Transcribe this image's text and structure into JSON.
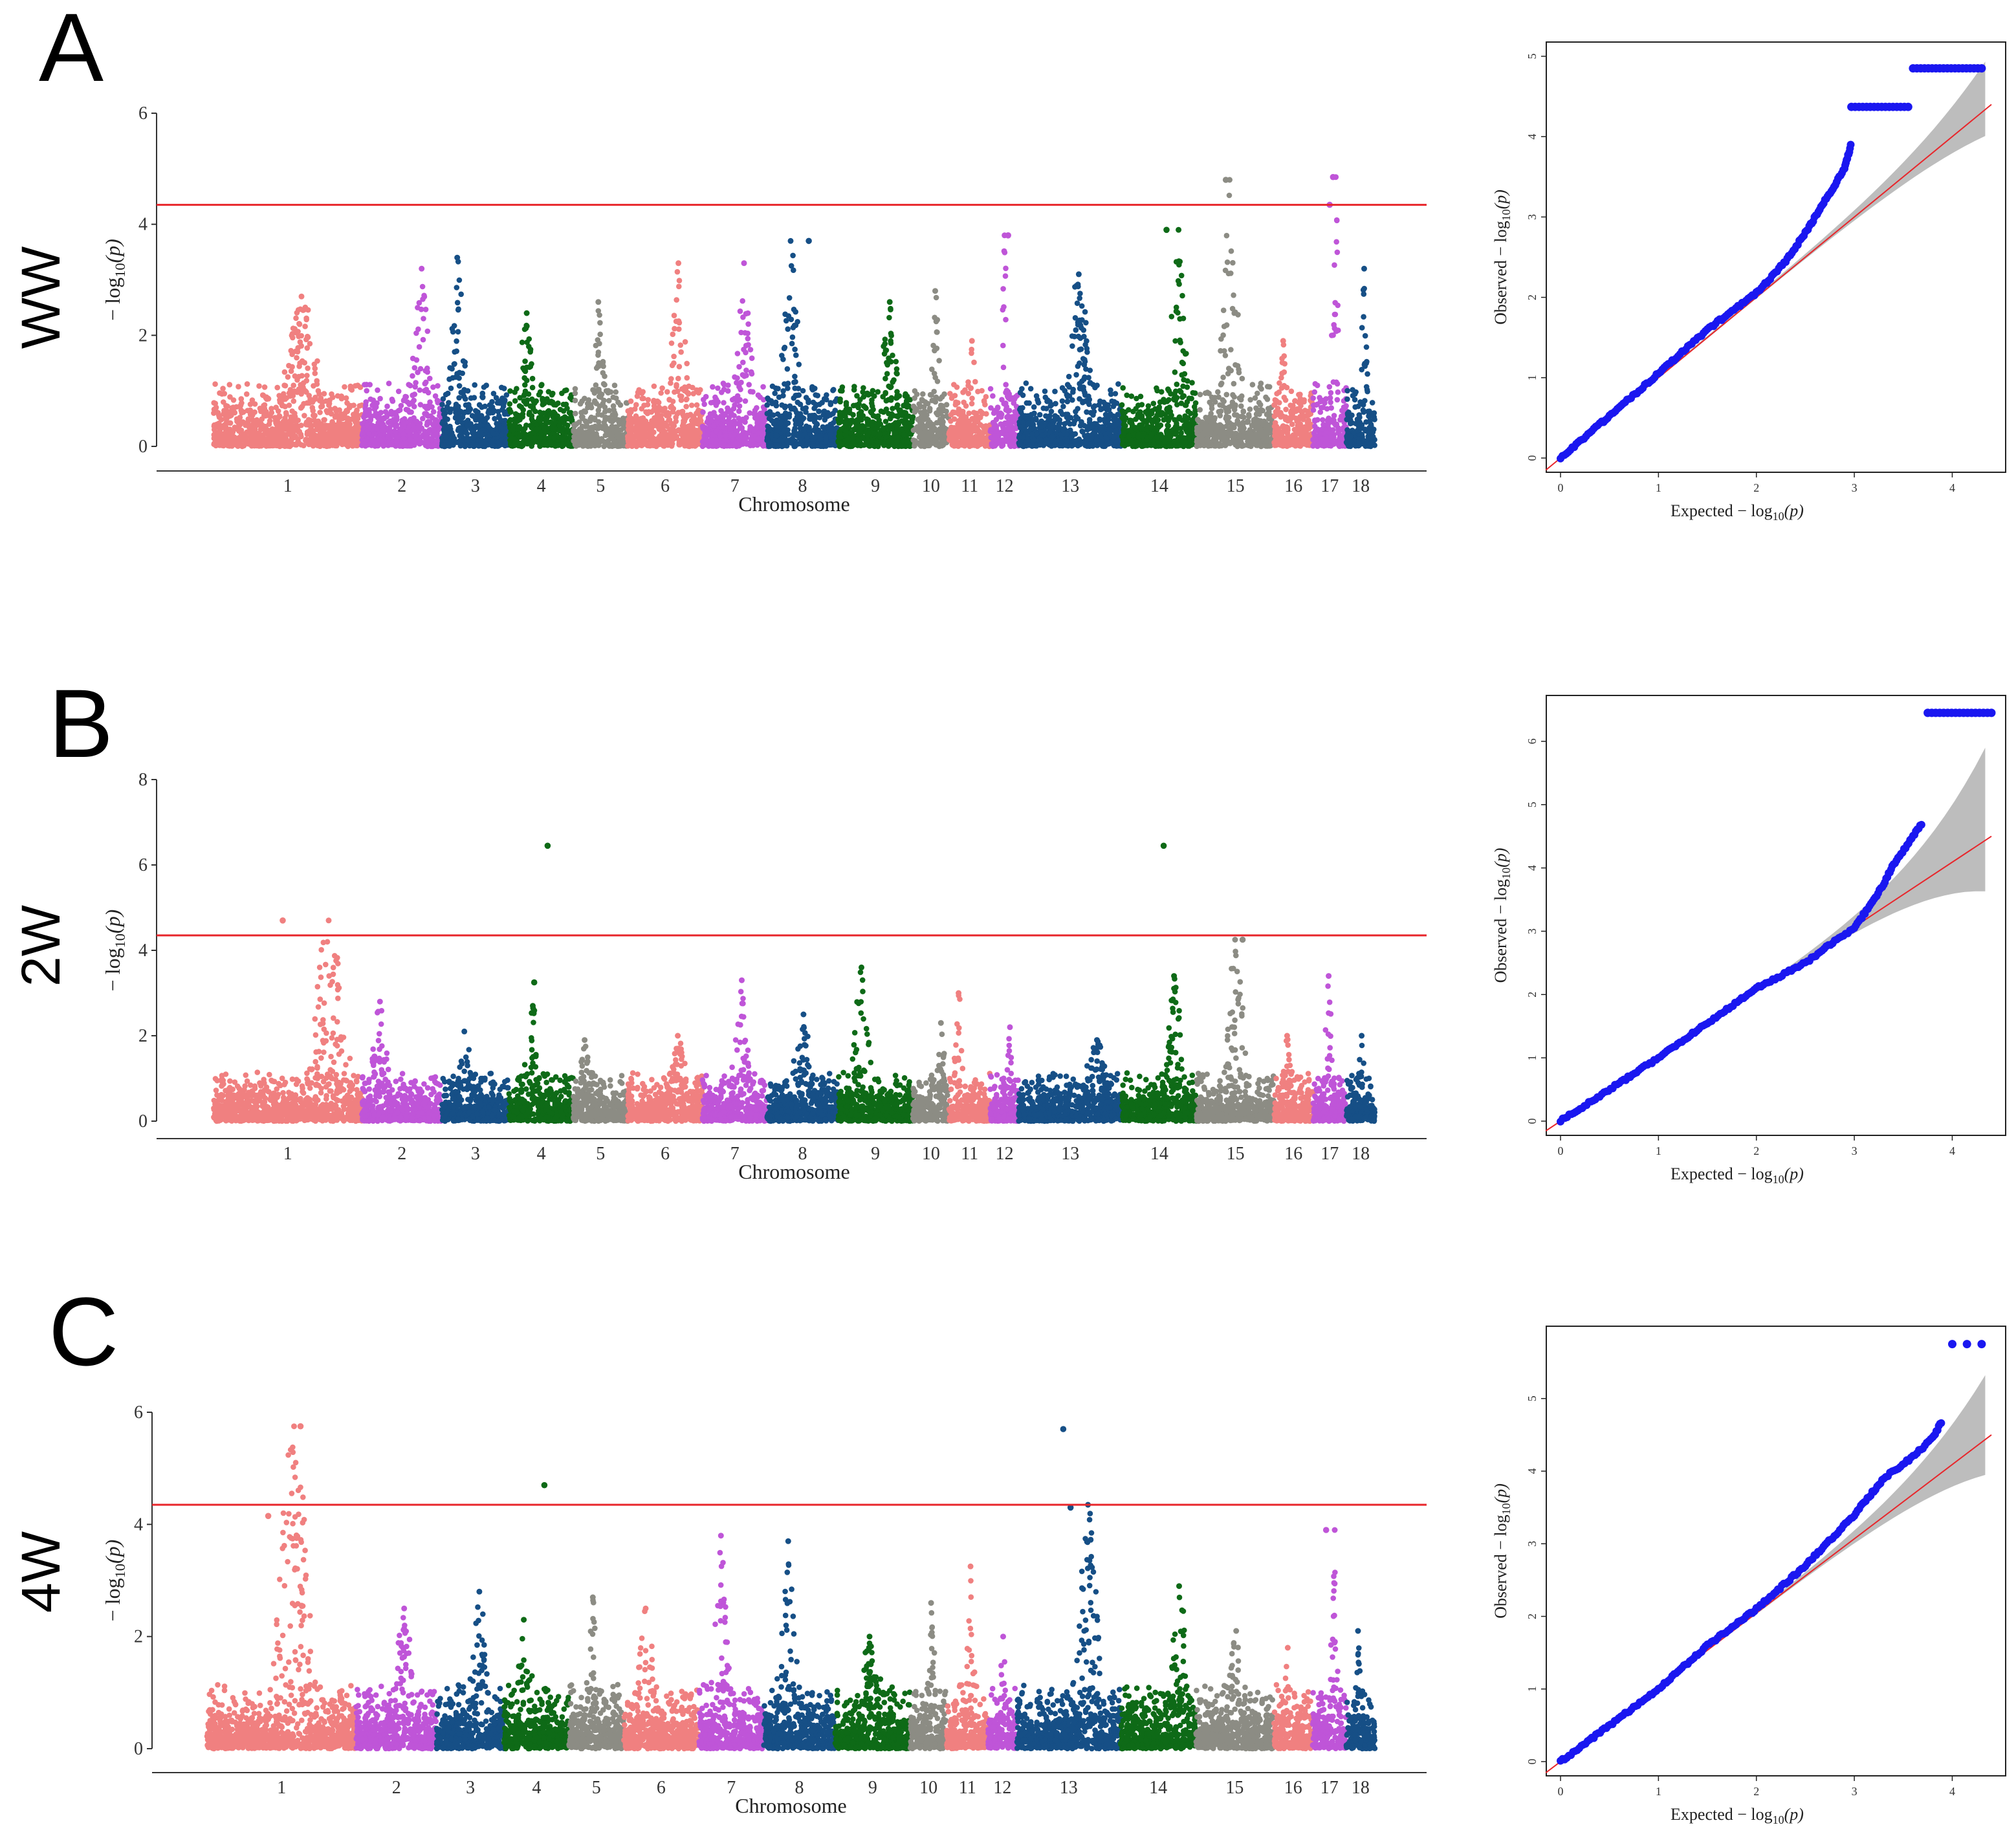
{
  "chart_data": [
    {
      "panel": "A",
      "condition": "WW",
      "type": "scatter",
      "subtype": "manhattan",
      "xlabel": "Chromosome",
      "ylabel": "−log10(p)",
      "ylim": [
        0,
        6
      ],
      "yticks": [
        0,
        2,
        4,
        6
      ],
      "threshold": 4.35,
      "chromosomes": [
        "1",
        "2",
        "3",
        "4",
        "5",
        "6",
        "7",
        "8",
        "9",
        "10",
        "11",
        "12",
        "13",
        "14",
        "15",
        "16",
        "17",
        "18"
      ],
      "chrom_sizes": [
        115,
        62,
        52,
        50,
        42,
        58,
        50,
        55,
        58,
        28,
        32,
        22,
        80,
        58,
        60,
        30,
        26,
        22
      ],
      "chrom_peaks": [
        2.7,
        3.2,
        3.4,
        2.4,
        2.6,
        3.3,
        3.3,
        3.7,
        2.6,
        2.8,
        1.9,
        3.8,
        3.1,
        3.9,
        4.8,
        1.9,
        4.85,
        3.2
      ],
      "highlights": [
        {
          "chr": "12",
          "y": 3.8
        },
        {
          "chr": "15",
          "y": 4.8
        },
        {
          "chr": "17",
          "y": 4.85
        },
        {
          "chr": "17",
          "y": 4.35
        },
        {
          "chr": "14",
          "y": 3.9
        },
        {
          "chr": "8",
          "y": 3.7
        }
      ],
      "palette": [
        "#f08080",
        "#bf55d8",
        "#164f86",
        "#0e6a17",
        "#8c8c84"
      ]
    },
    {
      "panel": "B",
      "condition": "2W",
      "type": "scatter",
      "subtype": "manhattan",
      "xlabel": "Chromosome",
      "ylabel": "−log10(p)",
      "ylim": [
        0,
        8
      ],
      "yticks": [
        0,
        2,
        4,
        6,
        8
      ],
      "threshold": 4.35,
      "chromosomes": [
        "1",
        "2",
        "3",
        "4",
        "5",
        "6",
        "7",
        "8",
        "9",
        "10",
        "11",
        "12",
        "13",
        "14",
        "15",
        "16",
        "17",
        "18"
      ],
      "chrom_sizes": [
        115,
        62,
        52,
        50,
        42,
        58,
        50,
        55,
        58,
        28,
        32,
        22,
        80,
        58,
        60,
        30,
        26,
        22
      ],
      "chrom_peaks": [
        4.7,
        2.8,
        2.1,
        2.7,
        1.9,
        2.0,
        3.3,
        2.5,
        3.6,
        2.3,
        3.0,
        2.2,
        1.9,
        3.4,
        4.25,
        2.0,
        3.4,
        2.0
      ],
      "highlights": [
        {
          "chr": "1",
          "y": 4.7
        },
        {
          "chr": "4",
          "y": 6.45
        },
        {
          "chr": "14",
          "y": 6.45
        },
        {
          "chr": "15",
          "y": 4.25
        },
        {
          "chr": "4",
          "y": 3.25
        }
      ],
      "palette": [
        "#f08080",
        "#bf55d8",
        "#164f86",
        "#0e6a17",
        "#8c8c84"
      ]
    },
    {
      "panel": "C",
      "condition": "4W",
      "type": "scatter",
      "subtype": "manhattan",
      "xlabel": "Chromosome",
      "ylabel": "−log10(p)",
      "ylim": [
        0,
        6
      ],
      "yticks": [
        0,
        2,
        4,
        6
      ],
      "threshold": 4.35,
      "chromosomes": [
        "1",
        "2",
        "3",
        "4",
        "5",
        "6",
        "7",
        "8",
        "9",
        "10",
        "11",
        "12",
        "13",
        "14",
        "15",
        "16",
        "17",
        "18"
      ],
      "chrom_sizes": [
        115,
        62,
        52,
        50,
        42,
        58,
        50,
        55,
        58,
        28,
        32,
        22,
        80,
        58,
        60,
        30,
        26,
        22
      ],
      "chrom_peaks": [
        5.75,
        2.5,
        2.8,
        2.3,
        2.7,
        2.5,
        3.8,
        3.7,
        2.0,
        2.6,
        3.25,
        2.0,
        4.35,
        2.9,
        2.1,
        1.8,
        3.9,
        2.1
      ],
      "highlights": [
        {
          "chr": "1",
          "y": 5.75
        },
        {
          "chr": "1",
          "y": 4.15
        },
        {
          "chr": "4",
          "y": 4.7
        },
        {
          "chr": "13",
          "y": 5.7
        },
        {
          "chr": "13",
          "y": 4.3
        },
        {
          "chr": "17",
          "y": 3.9
        }
      ],
      "palette": [
        "#f08080",
        "#bf55d8",
        "#164f86",
        "#0e6a17",
        "#8c8c84"
      ]
    },
    {
      "panel": "A",
      "type": "scatter",
      "subtype": "qq",
      "xlabel": "Expected −log10(p)",
      "ylabel": "Observed −log10(p)",
      "xlim": [
        0,
        4.4
      ],
      "ylim": [
        0,
        5
      ],
      "xticks": [
        0,
        1,
        2,
        3,
        4
      ],
      "yticks": [
        0,
        1,
        2,
        3,
        4,
        5
      ],
      "curve": [
        [
          0,
          0
        ],
        [
          1,
          1.05
        ],
        [
          1.5,
          1.6
        ],
        [
          2,
          2.05
        ],
        [
          2.3,
          2.45
        ],
        [
          2.5,
          2.8
        ],
        [
          2.7,
          3.2
        ],
        [
          2.9,
          3.6
        ],
        [
          2.97,
          3.92
        ]
      ],
      "plateaus": [
        {
          "x0": 2.97,
          "x1": 3.55,
          "y": 4.37
        },
        {
          "x0": 3.6,
          "x1": 4.3,
          "y": 4.85
        }
      ],
      "ci_end": [
        3.9,
        5.0
      ],
      "refline_end": [
        4.4,
        4.4
      ]
    },
    {
      "panel": "B",
      "type": "scatter",
      "subtype": "qq",
      "xlabel": "Expected −log10(p)",
      "ylabel": "Observed −log10(p)",
      "xlim": [
        0,
        4.4
      ],
      "ylim": [
        0,
        6.5
      ],
      "xticks": [
        0,
        1,
        2,
        3,
        4
      ],
      "yticks": [
        0,
        1,
        2,
        3,
        4,
        5,
        6
      ],
      "curve": [
        [
          0,
          0
        ],
        [
          1,
          1.0
        ],
        [
          1.5,
          1.55
        ],
        [
          2,
          2.1
        ],
        [
          2.5,
          2.5
        ],
        [
          2.8,
          2.85
        ],
        [
          3.0,
          3.05
        ],
        [
          3.2,
          3.5
        ],
        [
          3.3,
          3.75
        ],
        [
          3.4,
          4.05
        ],
        [
          3.6,
          4.5
        ],
        [
          3.7,
          4.72
        ]
      ],
      "plateaus": [
        {
          "x0": 3.75,
          "x1": 4.4,
          "y": 6.45
        }
      ],
      "ci_end": [
        3.8,
        6.0
      ],
      "refline_end": [
        4.4,
        4.5
      ]
    },
    {
      "panel": "C",
      "type": "scatter",
      "subtype": "qq",
      "xlabel": "Expected −log10(p)",
      "ylabel": "Observed −log10(p)",
      "xlim": [
        0,
        4.4
      ],
      "ylim": [
        0,
        5.8
      ],
      "xticks": [
        0,
        1,
        2,
        3,
        4
      ],
      "yticks": [
        0,
        1,
        2,
        3,
        4,
        5
      ],
      "curve": [
        [
          0,
          0
        ],
        [
          1,
          1.0
        ],
        [
          1.5,
          1.6
        ],
        [
          2,
          2.1
        ],
        [
          2.5,
          2.7
        ],
        [
          3.0,
          3.4
        ],
        [
          3.3,
          3.9
        ],
        [
          3.6,
          4.2
        ],
        [
          3.8,
          4.45
        ],
        [
          3.9,
          4.7
        ]
      ],
      "plateaus": [
        {
          "x0": 4.0,
          "x1": 4.3,
          "y": 5.75
        }
      ],
      "ci_end": [
        3.9,
        5.4
      ],
      "refline_end": [
        4.4,
        4.5
      ]
    }
  ],
  "labels": {
    "panel_A": "A",
    "panel_B": "B",
    "panel_C": "C",
    "cond_A": "WW",
    "cond_B": "2W",
    "cond_C": "4W",
    "chromosome": "Chromosome",
    "log_neg": "− log",
    "log_sub": "10",
    "p_sym": "(p)",
    "expected": "Expected",
    "observed": "Observed"
  }
}
